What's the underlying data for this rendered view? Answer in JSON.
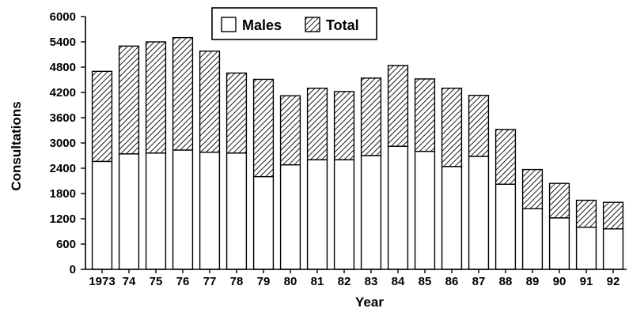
{
  "chart_data": {
    "type": "bar",
    "stacked": true,
    "title": "",
    "xlabel": "Year",
    "ylabel": "Consultations",
    "ylim": [
      0,
      6000
    ],
    "yticks": [
      0,
      600,
      1200,
      1800,
      2400,
      3000,
      3600,
      4200,
      4800,
      5400,
      6000
    ],
    "grid": false,
    "legend_position": "top-center",
    "categories": [
      "1973",
      "74",
      "75",
      "76",
      "77",
      "78",
      "79",
      "80",
      "81",
      "82",
      "83",
      "84",
      "85",
      "86",
      "87",
      "88",
      "89",
      "90",
      "91",
      "92"
    ],
    "series": [
      {
        "name": "Males",
        "fill": "white",
        "values": [
          2560,
          2740,
          2760,
          2830,
          2780,
          2760,
          2200,
          2480,
          2600,
          2600,
          2700,
          2920,
          2800,
          2440,
          2680,
          2020,
          1440,
          1220,
          1000,
          960
        ]
      },
      {
        "name": "Total",
        "fill": "hatched",
        "values": [
          4700,
          5300,
          5400,
          5500,
          5180,
          4660,
          4510,
          4120,
          4300,
          4220,
          4540,
          4840,
          4520,
          4300,
          4130,
          3320,
          2370,
          2040,
          1640,
          1590
        ]
      }
    ]
  }
}
